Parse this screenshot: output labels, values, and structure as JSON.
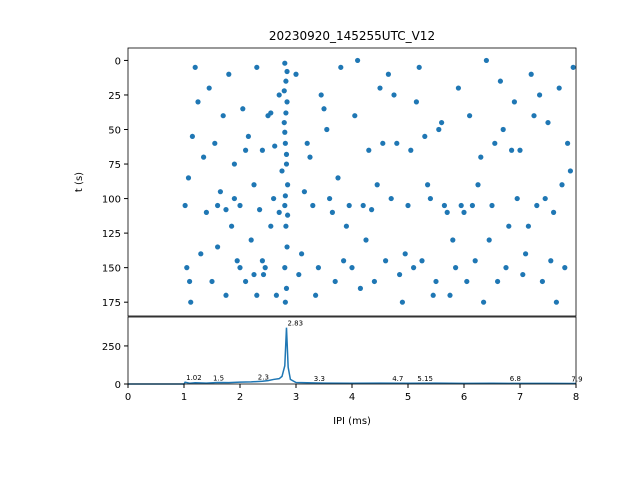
{
  "chart_data": [
    {
      "type": "scatter",
      "title": "20230920_145255UTC_V12",
      "y_label": "t (s)",
      "color": "#1f77b4",
      "xlim": [
        0,
        8
      ],
      "ylim": [
        185,
        -9
      ],
      "yticks": [
        0,
        25,
        50,
        75,
        100,
        125,
        150,
        175
      ],
      "x": [
        2.8,
        2.82,
        2.84,
        2.79,
        2.81,
        2.83,
        2.85,
        2.8,
        2.82,
        2.84,
        2.8,
        2.83,
        2.81,
        2.84,
        2.79,
        2.82,
        2.8,
        2.83,
        2.81,
        2.85,
        1.02,
        1.05,
        1.1,
        1.12,
        1.08,
        1.15,
        1.2,
        1.25,
        1.3,
        1.35,
        1.4,
        1.45,
        1.5,
        1.55,
        1.6,
        1.65,
        1.7,
        1.75,
        1.8,
        1.85,
        1.9,
        1.95,
        2.0,
        2.05,
        2.1,
        2.15,
        2.2,
        2.25,
        2.3,
        2.35,
        2.4,
        2.45,
        2.5,
        2.55,
        2.6,
        2.65,
        2.7,
        2.75,
        2.42,
        2.62,
        1.6,
        1.75,
        1.9,
        2.0,
        2.1,
        2.25,
        2.4,
        2.55,
        2.7,
        2.3,
        3.0,
        3.1,
        3.2,
        3.3,
        3.4,
        3.5,
        3.6,
        3.7,
        3.8,
        3.9,
        3.05,
        3.25,
        3.45,
        3.65,
        3.85,
        3.15,
        3.35,
        3.55,
        3.75,
        3.95,
        4.0,
        4.1,
        4.2,
        4.3,
        4.4,
        4.5,
        4.6,
        4.7,
        4.8,
        4.9,
        4.05,
        4.25,
        4.45,
        4.65,
        4.85,
        4.15,
        4.35,
        4.55,
        4.75,
        4.95,
        5.0,
        5.1,
        5.2,
        5.3,
        5.4,
        5.5,
        5.6,
        5.7,
        5.8,
        5.9,
        5.05,
        5.25,
        5.45,
        5.65,
        5.85,
        5.15,
        5.35,
        5.55,
        5.75,
        5.95,
        6.0,
        6.1,
        6.2,
        6.3,
        6.4,
        6.5,
        6.6,
        6.7,
        6.8,
        6.9,
        6.05,
        6.25,
        6.45,
        6.65,
        6.85,
        6.15,
        6.35,
        6.55,
        6.75,
        6.95,
        7.0,
        7.1,
        7.2,
        7.3,
        7.4,
        7.5,
        7.6,
        7.7,
        7.8,
        7.9,
        7.05,
        7.25,
        7.45,
        7.65,
        7.85,
        7.15,
        7.35,
        7.55,
        7.75,
        7.95
      ],
      "y": [
        2,
        15,
        30,
        45,
        60,
        75,
        90,
        105,
        120,
        135,
        150,
        165,
        175,
        8,
        22,
        38,
        52,
        68,
        98,
        112,
        105,
        150,
        160,
        175,
        85,
        55,
        5,
        30,
        140,
        70,
        110,
        20,
        160,
        60,
        135,
        95,
        40,
        170,
        10,
        120,
        75,
        145,
        105,
        35,
        160,
        55,
        130,
        90,
        5,
        108,
        65,
        150,
        40,
        120,
        100,
        170,
        25,
        80,
        155,
        62,
        105,
        108,
        100,
        150,
        65,
        155,
        145,
        38,
        110,
        170,
        10,
        140,
        60,
        105,
        150,
        35,
        100,
        160,
        5,
        120,
        155,
        70,
        25,
        110,
        145,
        95,
        170,
        50,
        85,
        105,
        150,
        0,
        105,
        65,
        160,
        20,
        145,
        100,
        60,
        175,
        40,
        130,
        90,
        10,
        155,
        165,
        108,
        60,
        25,
        140,
        105,
        150,
        5,
        55,
        100,
        160,
        45,
        110,
        130,
        20,
        65,
        145,
        170,
        105,
        150,
        30,
        90,
        50,
        170,
        105,
        110,
        40,
        145,
        70,
        0,
        105,
        160,
        50,
        120,
        30,
        160,
        90,
        130,
        15,
        65,
        105,
        175,
        60,
        150,
        100,
        65,
        140,
        10,
        105,
        160,
        45,
        110,
        20,
        150,
        80,
        155,
        40,
        100,
        175,
        60,
        120,
        25,
        145,
        90,
        5
      ]
    },
    {
      "type": "line",
      "x_label": "IPI (ms)",
      "color": "#1f77b4",
      "xlim": [
        0,
        8
      ],
      "xticks": [
        0,
        1,
        2,
        3,
        4,
        5,
        6,
        7,
        8
      ],
      "ylim": [
        0,
        440
      ],
      "yticks": [
        0,
        250
      ],
      "x": [
        0,
        1.0,
        1.02,
        1.1,
        1.2,
        1.4,
        1.6,
        1.8,
        2.0,
        2.2,
        2.4,
        2.5,
        2.6,
        2.7,
        2.75,
        2.8,
        2.83,
        2.86,
        2.9,
        3.0,
        3.2,
        3.5,
        4.0,
        4.5,
        5.0,
        5.5,
        6.0,
        6.5,
        7.0,
        7.5,
        8.0
      ],
      "values": [
        0,
        0,
        12,
        5,
        8,
        6,
        10,
        9,
        12,
        14,
        18,
        22,
        30,
        35,
        50,
        120,
        370,
        110,
        30,
        10,
        8,
        6,
        5,
        6,
        5,
        6,
        4,
        5,
        4,
        4,
        3
      ],
      "peaks": {
        "x": [
          1.02,
          1.5,
          2.3,
          2.83,
          3.3,
          4.7,
          5.15,
          6.8,
          7.9
        ],
        "counts": [
          12,
          10,
          16,
          370,
          8,
          6,
          8,
          5,
          4
        ]
      }
    }
  ]
}
